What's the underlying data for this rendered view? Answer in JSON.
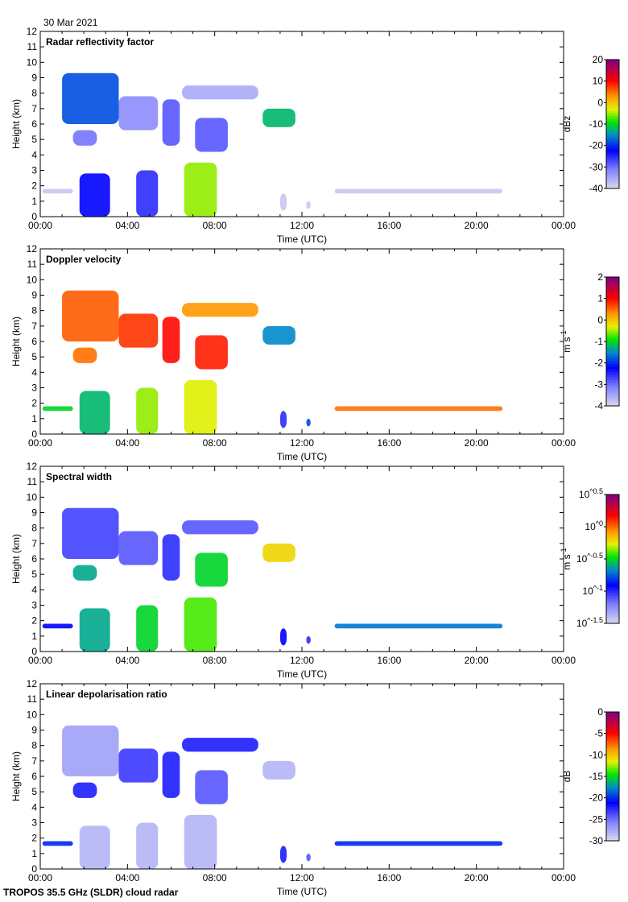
{
  "date": "30 Mar 2021",
  "footer": "TROPOS 35.5 GHz (SLDR) cloud radar",
  "chart_data": {
    "type": "heatmap",
    "x_label": "Time (UTC)",
    "y_label": "Height (km)",
    "x_ticks": [
      "00:00",
      "04:00",
      "08:00",
      "12:00",
      "16:00",
      "20:00",
      "00:00"
    ],
    "x_range_hours": [
      0,
      24
    ],
    "y_range_km": [
      0,
      12
    ],
    "y_ticks": [
      "0",
      "1",
      "2",
      "3",
      "4",
      "5",
      "6",
      "7",
      "8",
      "9",
      "10",
      "11",
      "12"
    ],
    "features_note": "approximate cloud regions: [t_start_h, t_end_h, h_bottom_km, h_top_km]",
    "regions": [
      [
        1.0,
        3.6,
        6.0,
        9.3
      ],
      [
        1.5,
        2.6,
        4.6,
        5.6
      ],
      [
        3.6,
        5.4,
        5.6,
        7.8
      ],
      [
        5.6,
        6.4,
        4.6,
        7.6
      ],
      [
        7.1,
        8.6,
        4.2,
        6.4
      ],
      [
        6.5,
        10.0,
        7.6,
        8.5
      ],
      [
        10.2,
        11.7,
        5.8,
        7.0
      ],
      [
        1.8,
        3.2,
        0,
        2.8
      ],
      [
        4.4,
        5.4,
        0,
        3.0
      ],
      [
        6.6,
        8.1,
        0,
        3.5
      ],
      [
        0.1,
        1.5,
        1.5,
        1.8
      ],
      [
        11.0,
        11.3,
        0.4,
        1.5
      ],
      [
        12.2,
        12.4,
        0.5,
        1.0
      ],
      [
        13.5,
        21.2,
        1.5,
        1.8
      ]
    ],
    "panels": [
      {
        "title": "Radar reflectivity factor",
        "unit": "dBz",
        "scale": "linear",
        "cbar_ticks": [
          "20",
          "10",
          "0",
          "-10",
          "-20",
          "-30",
          "-40"
        ],
        "range": [
          -40,
          20
        ],
        "values": [
          -18,
          -30,
          -32,
          -28,
          -28,
          -35,
          -12,
          -22,
          -25,
          -5,
          -38,
          -38,
          -38,
          -38
        ]
      },
      {
        "title": "Doppler velocity",
        "unit": "m s-1",
        "scale": "linear",
        "cbar_ticks": [
          "2",
          "1",
          "0",
          "-1",
          "-2",
          "-3",
          "-4"
        ],
        "range": [
          -4,
          2
        ],
        "values": [
          0.6,
          0.5,
          0.8,
          1.0,
          0.9,
          0.3,
          -1.5,
          -1.2,
          -0.5,
          -0.3,
          -1.0,
          -2.5,
          -1.8,
          0.5
        ]
      },
      {
        "title": "Spectral width",
        "unit": "m s-1",
        "scale": "log10",
        "cbar_ticks": [
          "10^0.5",
          "10^0",
          "10^-0.5",
          "10^-1",
          "10^-1.5"
        ],
        "range": [
          -1.5,
          0.5
        ],
        "values": [
          -1.05,
          -0.6,
          -1.1,
          -1.0,
          -0.5,
          -1.1,
          -0.2,
          -0.6,
          -0.5,
          -0.4,
          -0.9,
          -0.9,
          -1.0,
          -0.7
        ]
      },
      {
        "title": "Linear depolarisation ratio",
        "unit": "dB",
        "scale": "linear",
        "cbar_ticks": [
          "0",
          "-5",
          "-10",
          "-15",
          "-20",
          "-25",
          "-30"
        ],
        "range": [
          -30,
          0
        ],
        "values": [
          -27,
          -22,
          -23,
          -22,
          -24,
          -22,
          -28,
          -28,
          -28,
          -28,
          -20,
          -22,
          -24,
          -20
        ]
      }
    ]
  }
}
